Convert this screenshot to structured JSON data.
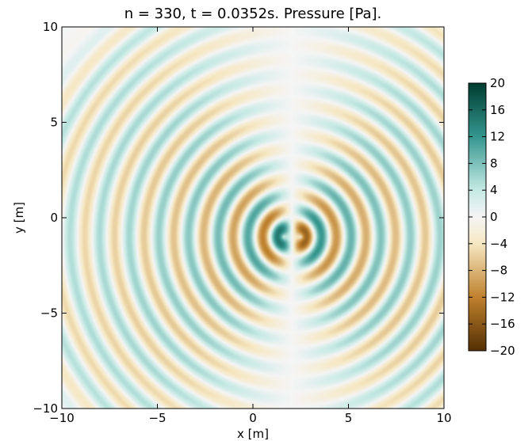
{
  "chart_data": {
    "type": "heatmap",
    "title": "n = 330, t = 0.0352s. Pressure [Pa].",
    "xlabel": "x [m]",
    "ylabel": "y [m]",
    "xlim": [
      -10,
      10
    ],
    "ylim": [
      -10,
      10
    ],
    "x_ticks": [
      "−10",
      "−5",
      "0",
      "5",
      "10"
    ],
    "y_ticks": [
      "−10",
      "−5",
      "0",
      "5",
      "10"
    ],
    "x_tick_values": [
      -10,
      -5,
      0,
      5,
      10
    ],
    "y_tick_values": [
      -10,
      -5,
      0,
      5,
      10
    ],
    "grid": false,
    "colormap": "BrBG",
    "colorbar": {
      "range": [
        -20,
        20
      ],
      "tick_values": [
        20,
        16,
        12,
        8,
        4,
        0,
        -4,
        -8,
        -12,
        -16,
        -20
      ],
      "tick_labels": [
        "20",
        "16",
        "12",
        "8",
        "4",
        "0",
        "−4",
        "−8",
        "−12",
        "−16",
        "−20"
      ]
    },
    "field": {
      "description_kind": "concentric pressure waves",
      "source_centers": [
        [
          1.6,
          -1.0
        ],
        [
          2.5,
          -1.0
        ]
      ],
      "source_polarity": [
        1,
        -1
      ],
      "wavelength": 1.55,
      "front_radius": 14.5,
      "peak_amplitude": 20,
      "background_value": 0
    },
    "colors": {
      "neg_max": "#543005",
      "neg_mid": "#bf812d",
      "neg_low": "#f6e8c3",
      "zero": "#f5f5f5",
      "pos_low": "#c7eae5",
      "pos_mid": "#35978f",
      "pos_max": "#003c30"
    }
  }
}
